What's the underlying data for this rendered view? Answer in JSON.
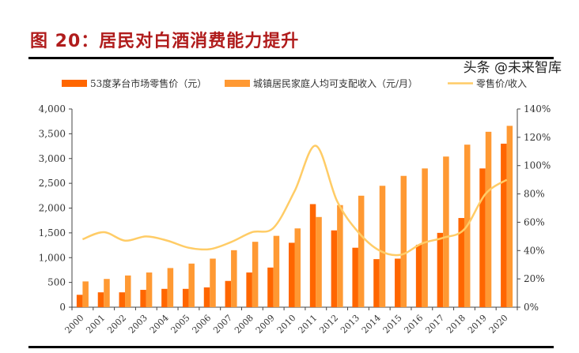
{
  "title": "图 20：居民对白酒消费能力提升",
  "watermark": "头条 @未来智库",
  "chart_data": {
    "type": "bar+line",
    "categories": [
      "2000",
      "2001",
      "2002",
      "2003",
      "2004",
      "2005",
      "2006",
      "2007",
      "2008",
      "2009",
      "2010",
      "2011",
      "2012",
      "2013",
      "2014",
      "2015",
      "2016",
      "2017",
      "2018",
      "2019",
      "2020"
    ],
    "series": [
      {
        "name": "53度茅台市场零售价（元）",
        "type": "bar",
        "axis": "left",
        "color": "#ff6600",
        "values": [
          250,
          300,
          300,
          350,
          370,
          370,
          400,
          530,
          700,
          800,
          1300,
          2080,
          1550,
          1200,
          970,
          980,
          1260,
          1500,
          1800,
          2800,
          3300
        ]
      },
      {
        "name": "城镇居民家庭人均可支配收入（元/月）",
        "type": "bar",
        "axis": "left",
        "color": "#ff9933",
        "values": [
          520,
          570,
          640,
          700,
          790,
          880,
          980,
          1150,
          1320,
          1440,
          1590,
          1820,
          2060,
          2250,
          2450,
          2650,
          2800,
          3040,
          3280,
          3540,
          3660
        ]
      },
      {
        "name": "零售价/收入",
        "type": "line",
        "axis": "right",
        "color": "#ffcc66",
        "values": [
          48,
          53,
          47,
          50,
          47,
          42,
          41,
          46,
          53,
          56,
          82,
          114,
          75,
          53,
          40,
          37,
          45,
          49,
          55,
          80,
          90
        ]
      }
    ],
    "y_left": {
      "range": [
        0,
        4000
      ],
      "ticks": [
        "0",
        "500",
        "1,000",
        "1,500",
        "2,000",
        "2,500",
        "3,000",
        "3,500",
        "4,000"
      ]
    },
    "y_right": {
      "range": [
        0,
        140
      ],
      "ticks": [
        "0%",
        "20%",
        "40%",
        "60%",
        "80%",
        "100%",
        "120%",
        "140%"
      ]
    },
    "grid": false,
    "legend": "top"
  }
}
